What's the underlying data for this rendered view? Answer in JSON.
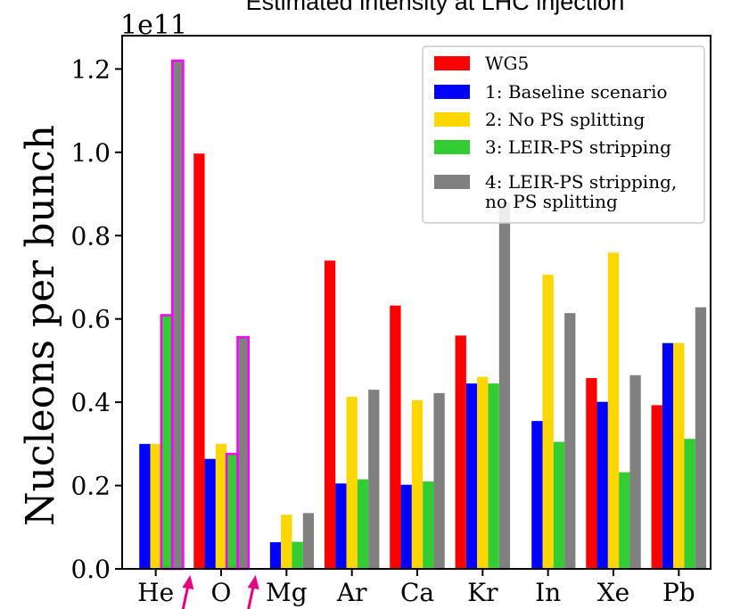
{
  "chart_data": {
    "type": "bar",
    "title": "Estimated intensity at LHC injection",
    "ylabel": "Nucleons per bunch",
    "xlabel": "",
    "y_scale_label": "1e11",
    "y_multiplier": 100000000000.0,
    "ylim": [
      0,
      1.28
    ],
    "yticks": [
      "0.0",
      "0.2",
      "0.4",
      "0.6",
      "0.8",
      "1.0",
      "1.2"
    ],
    "grid": false,
    "legend_position": "top-right",
    "categories": [
      "He",
      "O",
      "Mg",
      "Ar",
      "Ca",
      "Kr",
      "In",
      "Xe",
      "Pb"
    ],
    "series": [
      {
        "name": "WG5",
        "color": "#ff0000",
        "values": [
          null,
          0.997,
          null,
          0.74,
          0.632,
          0.56,
          null,
          0.458,
          0.393
        ]
      },
      {
        "name": "1: Baseline scenario",
        "color": "#0000ff",
        "values": [
          0.3,
          0.264,
          0.064,
          0.205,
          0.202,
          0.445,
          0.355,
          0.401,
          0.542
        ]
      },
      {
        "name": "2: No PS splitting",
        "color": "#ffd700",
        "values": [
          0.3,
          0.3,
          0.13,
          0.413,
          0.405,
          0.461,
          0.706,
          0.759,
          0.542
        ]
      },
      {
        "name": "3: LEIR-PS stripping",
        "color": "#33cc33",
        "values": [
          0.609,
          0.276,
          0.065,
          0.215,
          0.21,
          0.445,
          0.305,
          0.232,
          0.312
        ]
      },
      {
        "name": "4: LEIR-PS stripping,\nno PS splitting",
        "color": "#808080",
        "values": [
          1.22,
          0.556,
          0.134,
          0.43,
          0.422,
          0.88,
          0.614,
          0.465,
          0.628
        ]
      }
    ],
    "highlighted_bars": [
      {
        "category": "He",
        "series": 3
      },
      {
        "category": "He",
        "series": 4
      },
      {
        "category": "O",
        "series": 3
      },
      {
        "category": "O",
        "series": 4
      }
    ],
    "highlight_color": "#ff00ff",
    "annotations": [
      {
        "type": "arrow",
        "category": "He",
        "color": "#e6007e"
      },
      {
        "type": "arrow",
        "category": "O",
        "color": "#e6007e"
      }
    ]
  }
}
